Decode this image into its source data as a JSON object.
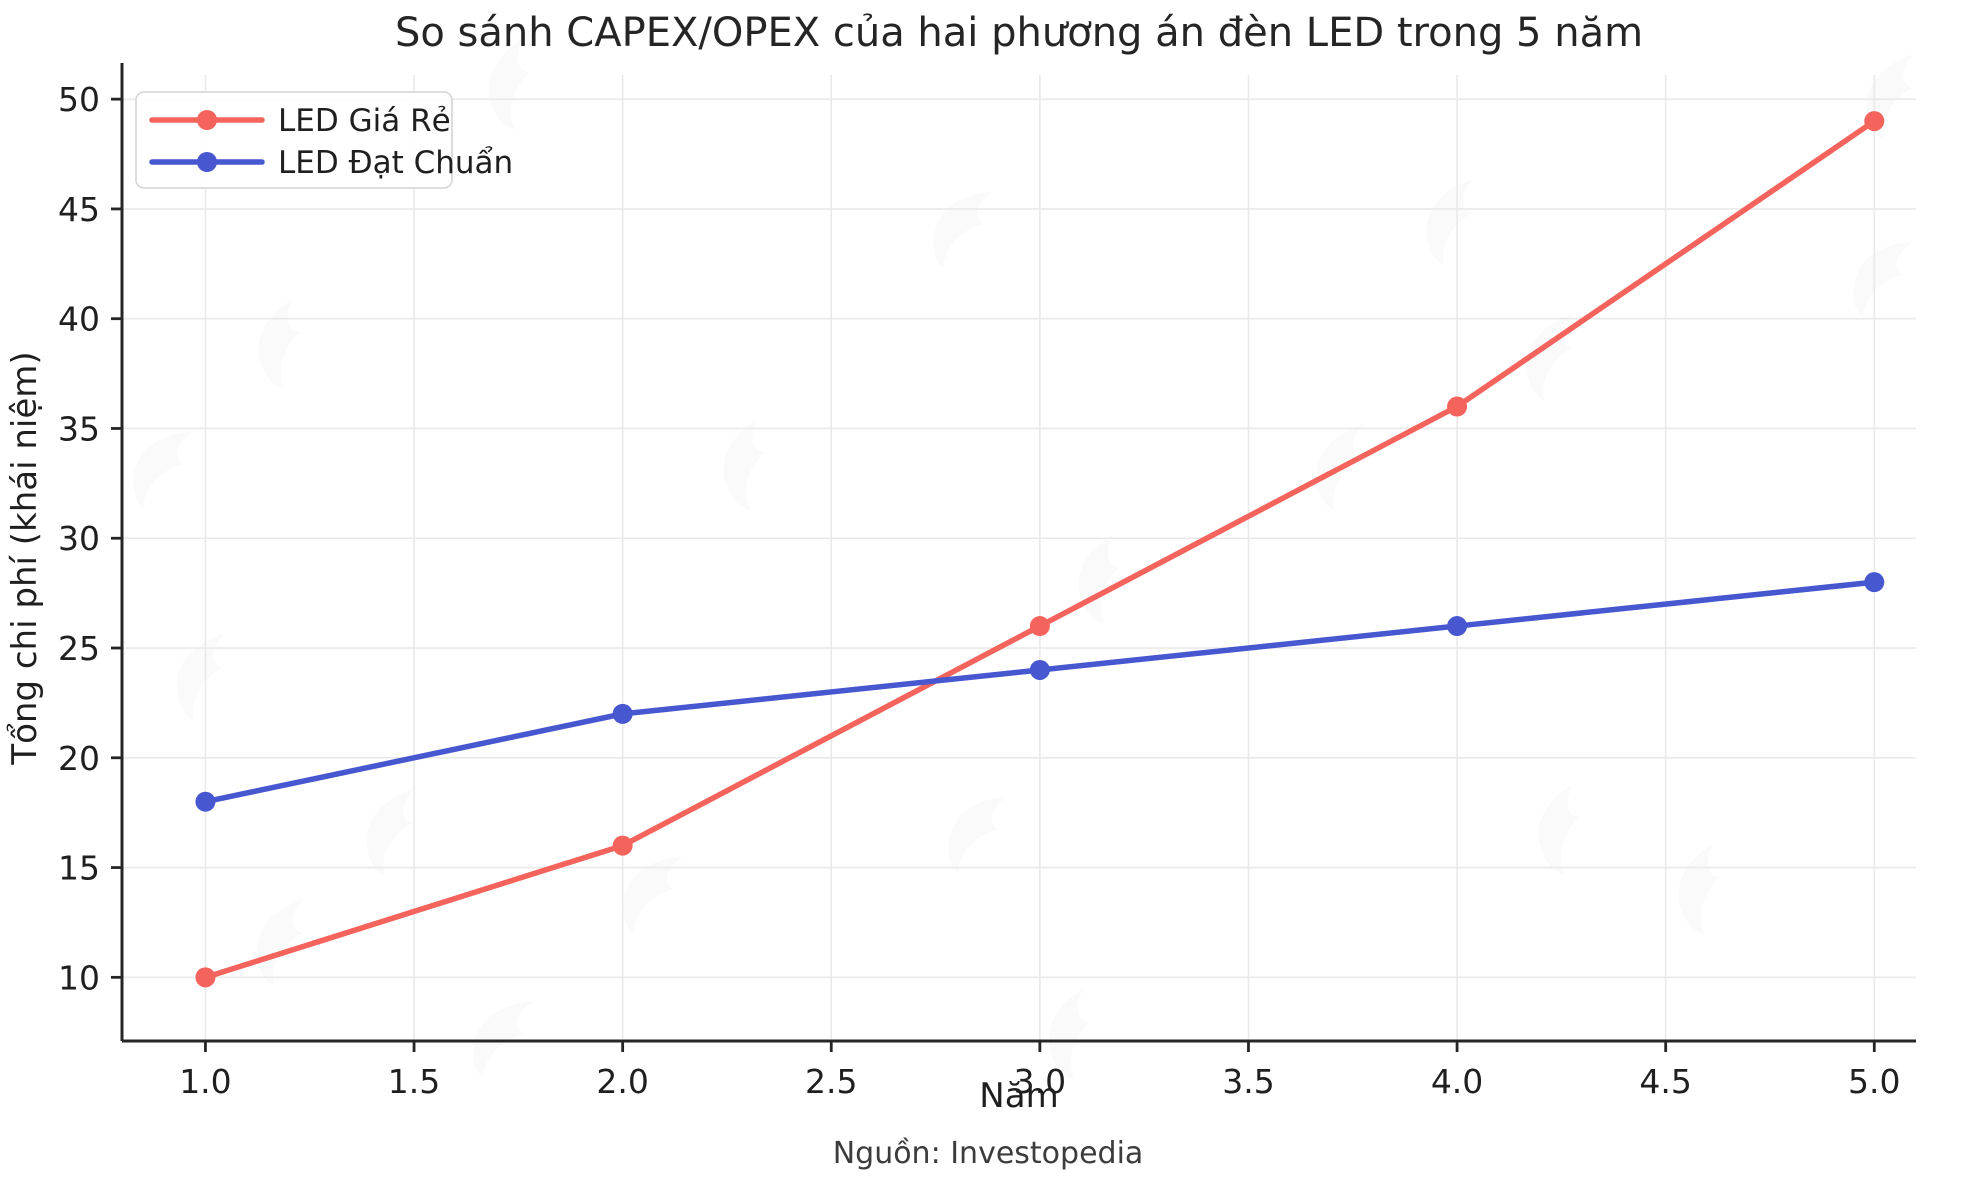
{
  "footer": {
    "source": "Nguồn: Investopedia"
  },
  "watermark_icon": "swoosh-watermark",
  "colors": {
    "series_cheap": "#f4635c",
    "series_standard": "#4657cf",
    "grid": "#e9e9e9",
    "spine": "#262626",
    "legend_border": "#d9d9d9",
    "background": "#ffffff"
  },
  "chart_data": {
    "type": "line",
    "title": "So sánh CAPEX/OPEX của hai phương án đèn LED trong 5 năm",
    "xlabel": "Năm",
    "ylabel": "Tổng chi phí (khái niệm)",
    "x": [
      1,
      2,
      3,
      4,
      5
    ],
    "series": [
      {
        "name": "LED Giá Rẻ",
        "color": "#f4635c",
        "values": [
          10,
          16,
          26,
          36,
          49
        ]
      },
      {
        "name": "LED Đạt Chuẩn",
        "color": "#4657cf",
        "values": [
          18,
          22,
          24,
          26,
          28
        ]
      }
    ],
    "xtick_labels": [
      "1.0",
      "1.5",
      "2.0",
      "2.5",
      "3.0",
      "3.5",
      "4.0",
      "4.5",
      "5.0"
    ],
    "ytick_labels": [
      "10",
      "15",
      "20",
      "25",
      "30",
      "35",
      "40",
      "45",
      "50"
    ],
    "xlim": [
      0.8,
      5.1
    ],
    "ylim": [
      7.1,
      51.1
    ],
    "grid": true,
    "legend_position": "upper left",
    "marker": "circle"
  }
}
